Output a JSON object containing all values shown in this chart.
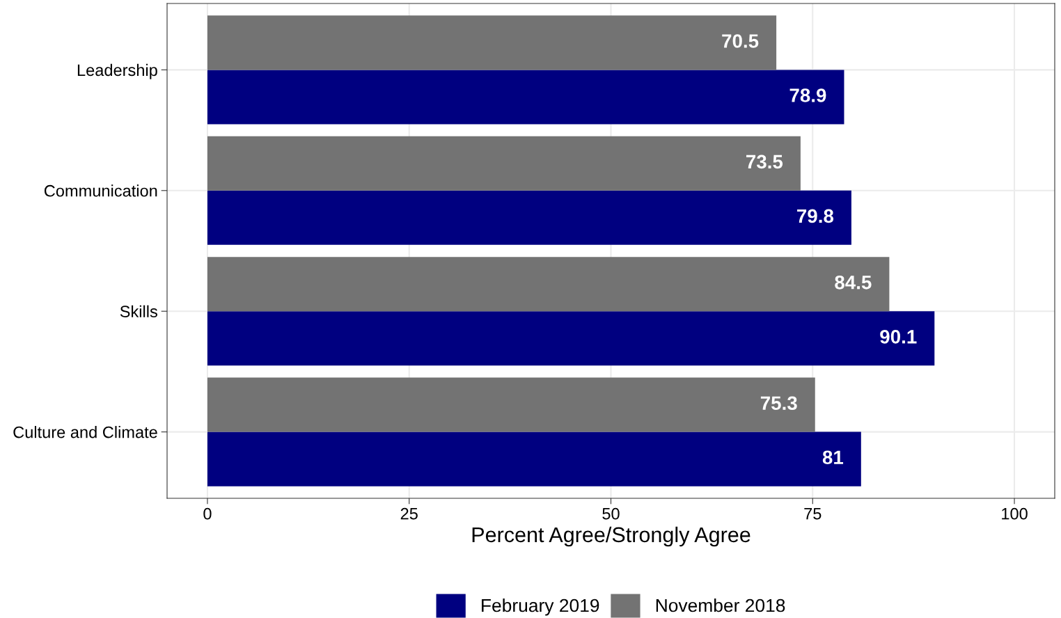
{
  "chart_data": {
    "type": "bar",
    "orientation": "horizontal",
    "xlabel": "Percent Agree/Strongly Agree",
    "categories": [
      "Leadership",
      "Communication",
      "Skills",
      "Culture and Climate"
    ],
    "series": [
      {
        "name": "February 2019",
        "color": "#000080",
        "values": [
          78.9,
          79.8,
          90.1,
          81
        ]
      },
      {
        "name": "November 2018",
        "color": "#737373",
        "values": [
          70.5,
          73.5,
          84.5,
          75.3
        ]
      }
    ],
    "xlim": [
      -5,
      105
    ],
    "xticks": [
      0,
      25,
      50,
      75,
      100
    ],
    "grid": true,
    "legend": "bottom",
    "data_labels": true
  }
}
